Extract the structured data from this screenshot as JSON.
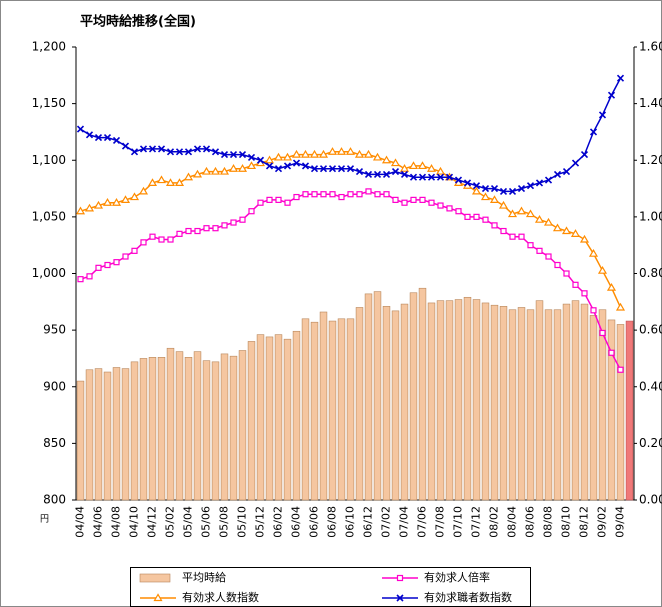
{
  "chart_data": {
    "type": "bar_line",
    "title": "平均時給推移(全国)",
    "y_unit_label": "円",
    "categories": [
      "04/04",
      null,
      "04/06",
      null,
      "04/08",
      null,
      "04/10",
      null,
      "04/12",
      null,
      "05/02",
      null,
      "05/04",
      null,
      "05/06",
      null,
      "05/08",
      null,
      "05/10",
      null,
      "05/12",
      null,
      "06/02",
      null,
      "06/04",
      null,
      "06/06",
      null,
      "06/08",
      null,
      "06/10",
      null,
      "06/12",
      null,
      "07/02",
      null,
      "07/04",
      null,
      "07/06",
      null,
      "07/08",
      null,
      "07/10",
      null,
      "07/12",
      null,
      "08/02",
      null,
      "08/04",
      null,
      "08/06",
      null,
      "08/08",
      null,
      "08/10",
      null,
      "08/12",
      null,
      "09/02",
      null,
      "09/04",
      null
    ],
    "series": [
      {
        "name": "平均時給",
        "type": "bar",
        "color": "#f5c6a0",
        "last_color": "#f07878",
        "values": [
          905,
          915,
          916,
          913,
          917,
          916,
          922,
          925,
          926,
          926,
          934,
          931,
          926,
          931,
          923,
          922,
          929,
          927,
          932,
          940,
          946,
          944,
          946,
          942,
          949,
          960,
          957,
          966,
          958,
          960,
          960,
          970,
          982,
          984,
          971,
          967,
          973,
          983,
          987,
          974,
          976,
          976,
          977,
          979,
          977,
          974,
          972,
          971,
          968,
          970,
          968,
          976,
          968,
          968,
          973,
          976,
          973,
          963,
          968,
          959,
          955,
          958
        ]
      },
      {
        "name": "有効求人倍率",
        "type": "line",
        "axis": "y2",
        "color": "#ff00cc",
        "marker": "square",
        "values": [
          0.78,
          0.79,
          0.82,
          0.83,
          0.84,
          0.86,
          0.88,
          0.91,
          0.93,
          0.92,
          0.92,
          0.94,
          0.95,
          0.95,
          0.96,
          0.96,
          0.97,
          0.98,
          0.99,
          1.02,
          1.05,
          1.06,
          1.06,
          1.05,
          1.07,
          1.08,
          1.08,
          1.08,
          1.08,
          1.07,
          1.08,
          1.08,
          1.09,
          1.08,
          1.08,
          1.06,
          1.05,
          1.06,
          1.06,
          1.05,
          1.04,
          1.03,
          1.02,
          1.0,
          1.0,
          0.99,
          0.97,
          0.95,
          0.93,
          0.93,
          0.9,
          0.88,
          0.86,
          0.83,
          0.8,
          0.76,
          0.73,
          0.67,
          0.59,
          0.52,
          0.46,
          null
        ]
      },
      {
        "name": "有効求人数指数",
        "type": "line",
        "axis": "y2",
        "color": "#ff8c00",
        "marker": "triangle",
        "values": [
          1.02,
          1.03,
          1.04,
          1.05,
          1.05,
          1.06,
          1.07,
          1.09,
          1.12,
          1.13,
          1.12,
          1.12,
          1.14,
          1.15,
          1.16,
          1.16,
          1.16,
          1.17,
          1.17,
          1.18,
          1.19,
          1.2,
          1.21,
          1.21,
          1.22,
          1.22,
          1.22,
          1.22,
          1.23,
          1.23,
          1.23,
          1.22,
          1.22,
          1.21,
          1.2,
          1.19,
          1.17,
          1.18,
          1.18,
          1.17,
          1.16,
          1.14,
          1.12,
          1.11,
          1.09,
          1.07,
          1.06,
          1.04,
          1.01,
          1.02,
          1.01,
          0.99,
          0.98,
          0.96,
          0.95,
          0.94,
          0.92,
          0.87,
          0.81,
          0.75,
          0.68,
          null
        ]
      },
      {
        "name": "有効求職者数指数",
        "type": "line",
        "axis": "y2",
        "color": "#0000cc",
        "marker": "x",
        "values": [
          1.31,
          1.29,
          1.28,
          1.28,
          1.27,
          1.25,
          1.23,
          1.24,
          1.24,
          1.24,
          1.23,
          1.23,
          1.23,
          1.24,
          1.24,
          1.23,
          1.22,
          1.22,
          1.22,
          1.21,
          1.2,
          1.18,
          1.17,
          1.18,
          1.19,
          1.18,
          1.17,
          1.17,
          1.17,
          1.17,
          1.17,
          1.16,
          1.15,
          1.15,
          1.15,
          1.16,
          1.15,
          1.14,
          1.14,
          1.14,
          1.14,
          1.14,
          1.13,
          1.12,
          1.11,
          1.1,
          1.1,
          1.09,
          1.09,
          1.1,
          1.11,
          1.12,
          1.13,
          1.15,
          1.16,
          1.19,
          1.22,
          1.3,
          1.36,
          1.43,
          1.49,
          null
        ]
      }
    ],
    "ylim": [
      800,
      1200
    ],
    "yticks": [
      800,
      850,
      900,
      950,
      {
        "value": 1000,
        "label": "1,000"
      },
      {
        "value": 1050,
        "label": "1,050"
      },
      {
        "value": 1100,
        "label": "1,100"
      },
      {
        "value": 1150,
        "label": "1,150"
      },
      {
        "value": 1200,
        "label": "1,200"
      }
    ],
    "y2lim": [
      0,
      1.6
    ],
    "y2ticks": [
      {
        "value": 0,
        "label": "0.00"
      },
      {
        "value": 0.2,
        "label": "0.20"
      },
      {
        "value": 0.4,
        "label": "0.40"
      },
      {
        "value": 0.6,
        "label": "0.60"
      },
      {
        "value": 0.8,
        "label": "0.80"
      },
      {
        "value": 1.0,
        "label": "1.00"
      },
      {
        "value": 1.2,
        "label": "1.20"
      },
      {
        "value": 1.4,
        "label": "1.40"
      },
      {
        "value": 1.6,
        "label": "1.60"
      }
    ],
    "grid": false,
    "legend": "bottom"
  }
}
